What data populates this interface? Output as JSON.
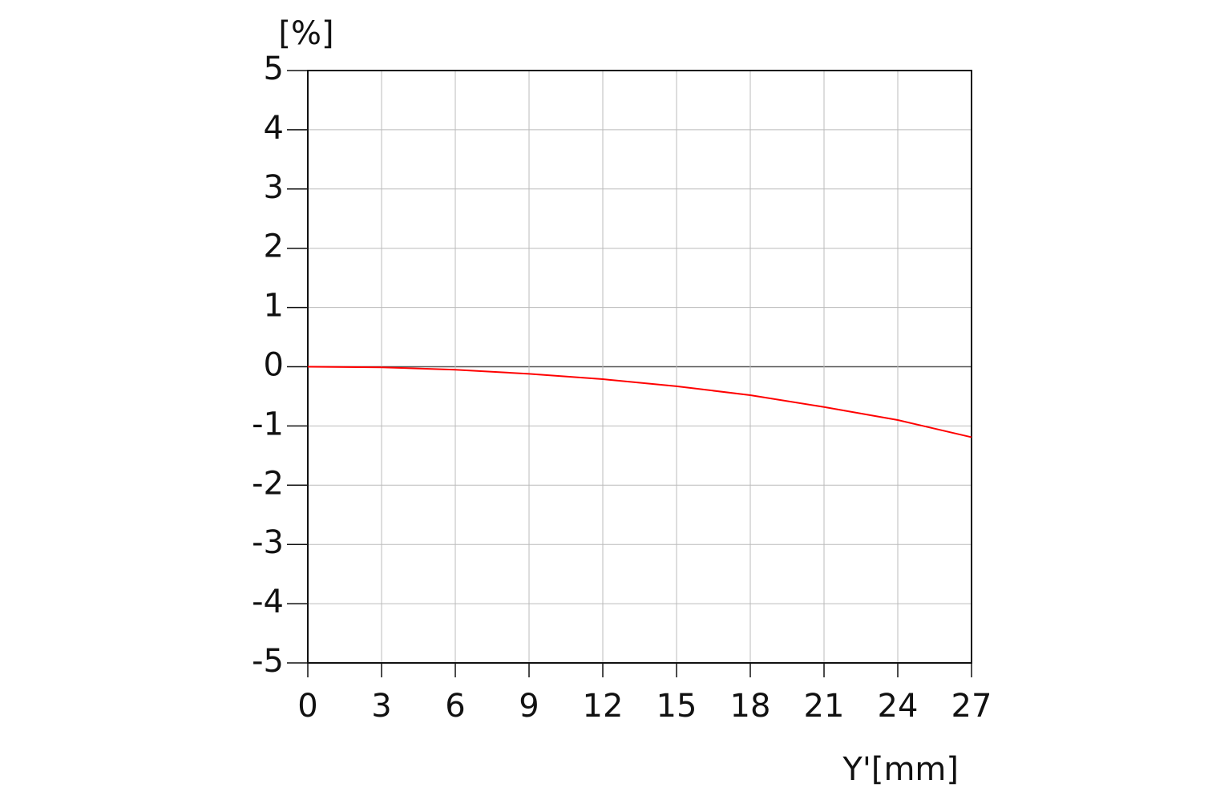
{
  "chart_data": {
    "type": "line",
    "y_label": "[%]",
    "x_label": "Y'[mm]",
    "x": [
      0,
      3,
      6,
      9,
      12,
      15,
      18,
      21,
      24,
      27
    ],
    "values": [
      0,
      -0.01,
      -0.05,
      -0.12,
      -0.21,
      -0.33,
      -0.48,
      -0.68,
      -0.9,
      -1.19
    ],
    "color": "#ff0000",
    "xlim": [
      0,
      27
    ],
    "xticks": [
      0,
      3,
      6,
      9,
      12,
      15,
      18,
      21,
      24,
      27
    ],
    "ylim": [
      -5,
      5
    ],
    "yticks": [
      -5,
      -4,
      -3,
      -2,
      -1,
      0,
      1,
      2,
      3,
      4,
      5
    ],
    "grid": true
  }
}
